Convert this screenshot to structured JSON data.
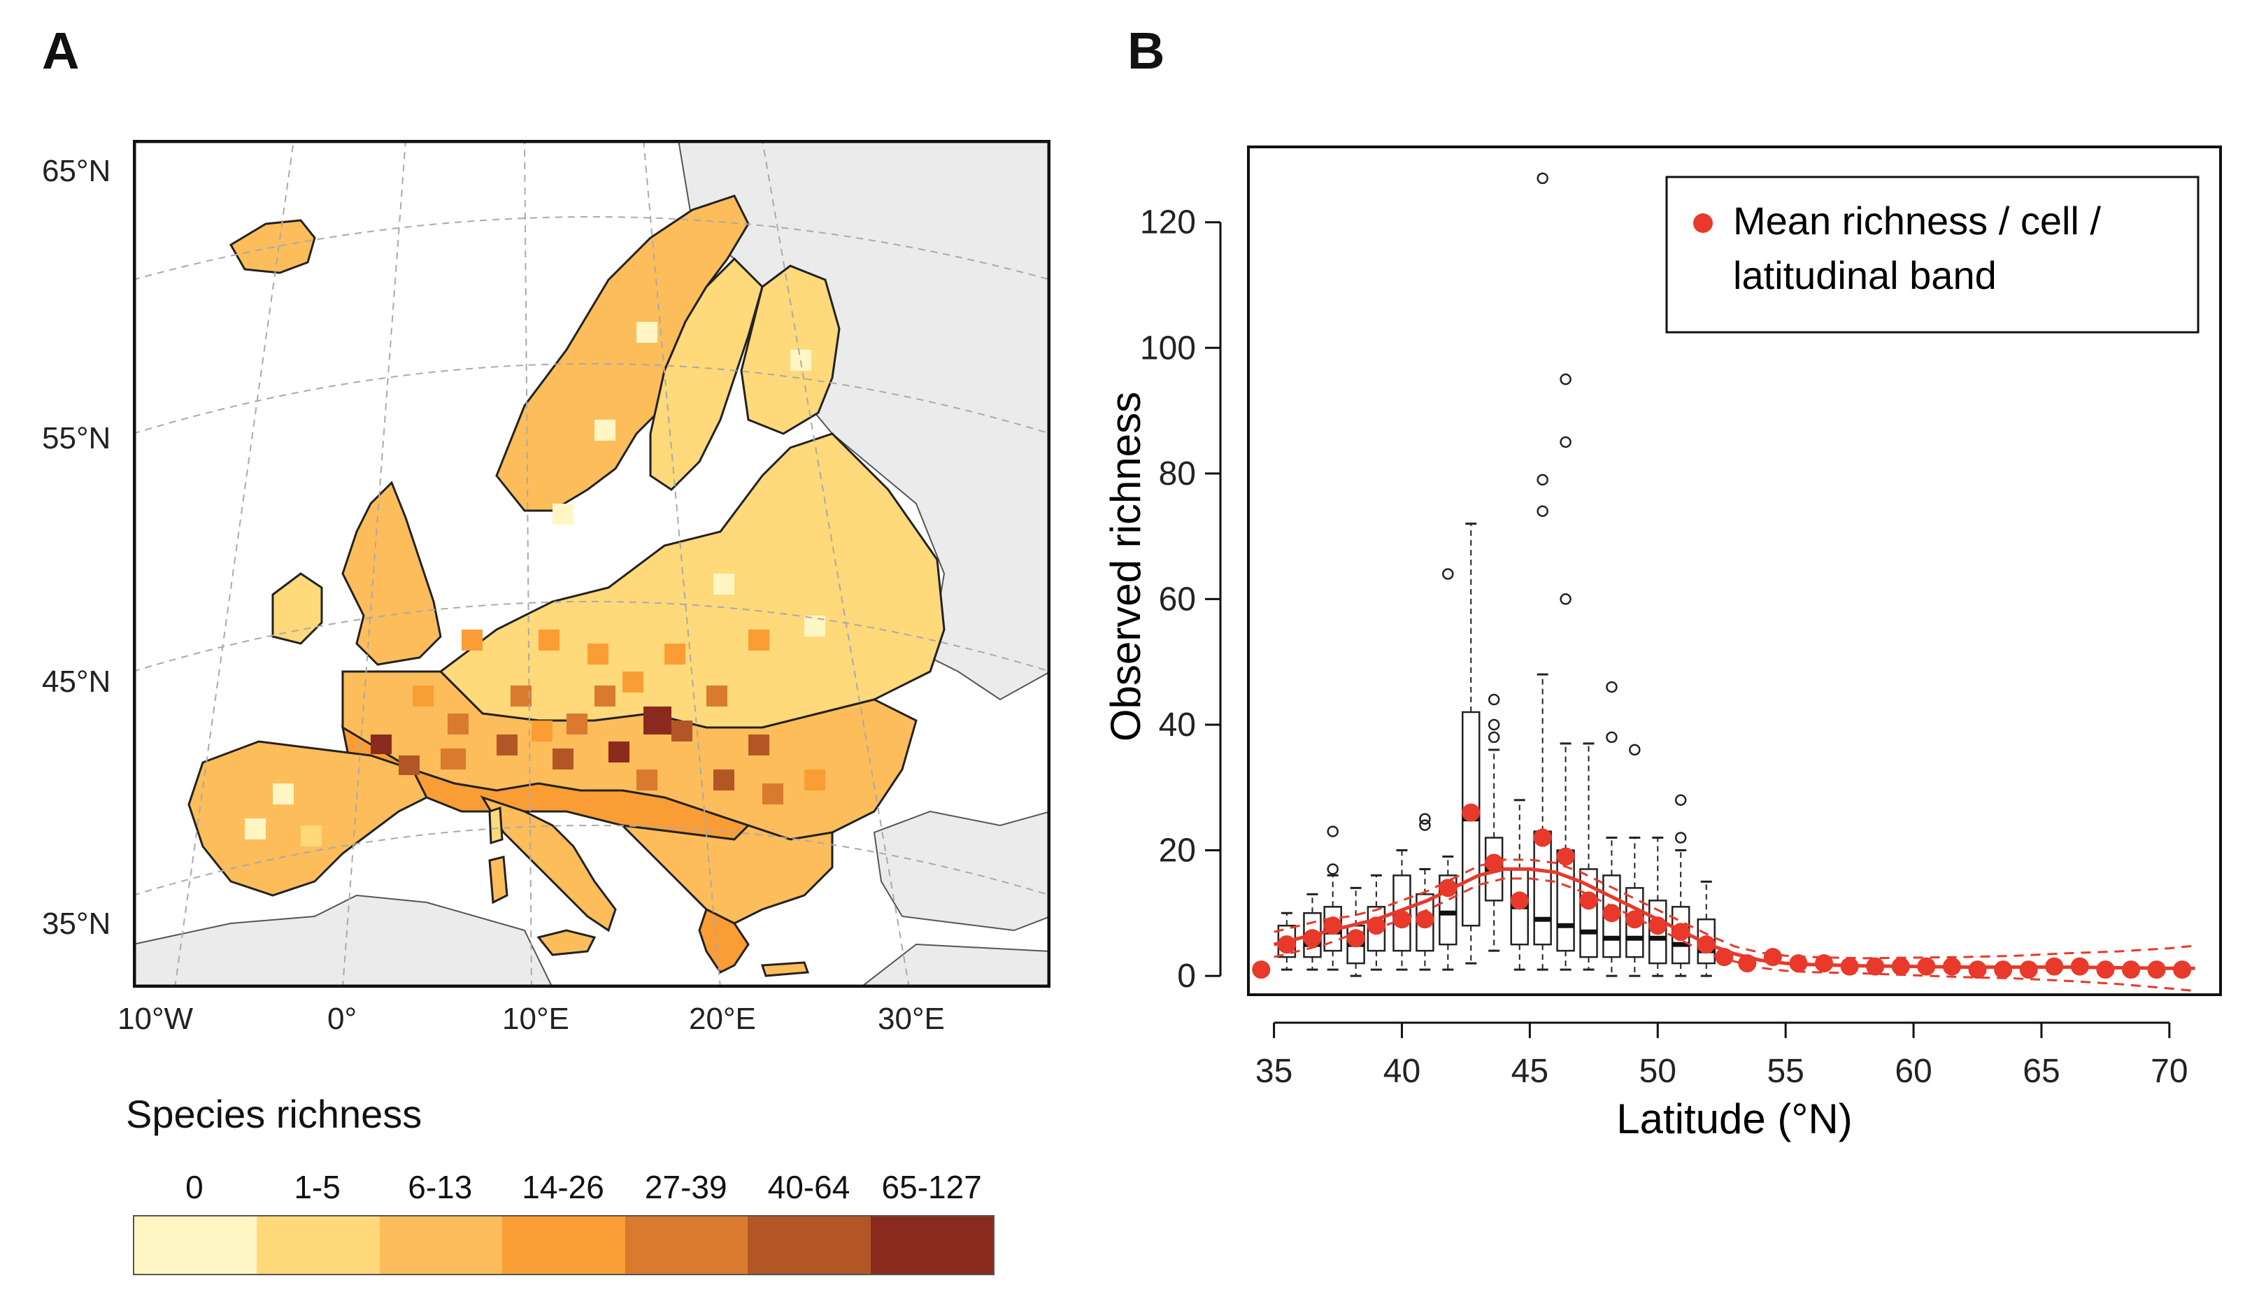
{
  "panels": {
    "a_label": "A",
    "b_label": "B"
  },
  "map": {
    "lat_labels": [
      "65°N",
      "55°N",
      "45°N",
      "35°N"
    ],
    "lon_labels": [
      "10°W",
      "0°",
      "10°E",
      "20°E",
      "30°E"
    ],
    "colors": {
      "sea": "#ffffff",
      "land_outside": "#ebebeb",
      "border": "#111111"
    }
  },
  "legend": {
    "title": "Species richness",
    "categories": [
      "0",
      "1-5",
      "6-13",
      "14-26",
      "27-39",
      "40-64",
      "65-127"
    ],
    "colors": [
      "#fff6c4",
      "#ffd97a",
      "#fdbd5a",
      "#fb9d35",
      "#d97a2e",
      "#b35626",
      "#8a2a1e"
    ]
  },
  "chart_data": {
    "type": "boxplot-with-scatter",
    "xlabel": "Latitude (°N)",
    "ylabel": "Observed richness",
    "xlim": [
      34,
      72
    ],
    "ylim": [
      -3,
      132
    ],
    "xticks": [
      35,
      40,
      45,
      50,
      55,
      60,
      65,
      70
    ],
    "yticks": [
      0,
      20,
      40,
      60,
      80,
      100,
      120
    ],
    "legend": {
      "label_line1": "Mean richness / cell /",
      "label_line2": "latitudinal band",
      "color": "#e8392a"
    },
    "series_color": "#e8392a",
    "boxes": [
      {
        "x": 35.5,
        "q1": 3,
        "median": 5,
        "q3": 8,
        "wlo": 1,
        "whi": 10,
        "outliers": []
      },
      {
        "x": 36.5,
        "q1": 3,
        "median": 5,
        "q3": 10,
        "wlo": 1,
        "whi": 13,
        "outliers": []
      },
      {
        "x": 37.3,
        "q1": 4,
        "median": 7,
        "q3": 11,
        "wlo": 1,
        "whi": 16,
        "outliers": [
          17,
          23
        ]
      },
      {
        "x": 38.2,
        "q1": 2,
        "median": 5,
        "q3": 8,
        "wlo": 0,
        "whi": 14,
        "outliers": []
      },
      {
        "x": 39.0,
        "q1": 4,
        "median": 8,
        "q3": 11,
        "wlo": 1,
        "whi": 16,
        "outliers": []
      },
      {
        "x": 40.0,
        "q1": 4,
        "median": 9,
        "q3": 16,
        "wlo": 1,
        "whi": 20,
        "outliers": []
      },
      {
        "x": 40.9,
        "q1": 4,
        "median": 9,
        "q3": 13,
        "wlo": 1,
        "whi": 17,
        "outliers": [
          24,
          25
        ]
      },
      {
        "x": 41.8,
        "q1": 5,
        "median": 10,
        "q3": 16,
        "wlo": 1,
        "whi": 19,
        "outliers": [
          64
        ]
      },
      {
        "x": 42.7,
        "q1": 8,
        "median": 25,
        "q3": 42,
        "wlo": 2,
        "whi": 72,
        "outliers": []
      },
      {
        "x": 43.6,
        "q1": 12,
        "median": 17,
        "q3": 22,
        "wlo": 4,
        "whi": 36,
        "outliers": [
          38,
          40,
          44
        ]
      },
      {
        "x": 44.6,
        "q1": 5,
        "median": 11,
        "q3": 17,
        "wlo": 1,
        "whi": 28,
        "outliers": []
      },
      {
        "x": 45.5,
        "q1": 5,
        "median": 9,
        "q3": 23,
        "wlo": 1,
        "whi": 48,
        "outliers": [
          74,
          79,
          127
        ]
      },
      {
        "x": 46.4,
        "q1": 4,
        "median": 8,
        "q3": 20,
        "wlo": 1,
        "whi": 37,
        "outliers": [
          60,
          85,
          95
        ]
      },
      {
        "x": 47.3,
        "q1": 3,
        "median": 7,
        "q3": 17,
        "wlo": 1,
        "whi": 37,
        "outliers": []
      },
      {
        "x": 48.2,
        "q1": 3,
        "median": 6,
        "q3": 16,
        "wlo": 0,
        "whi": 22,
        "outliers": [
          38,
          46
        ]
      },
      {
        "x": 49.1,
        "q1": 3,
        "median": 6,
        "q3": 14,
        "wlo": 0,
        "whi": 22,
        "outliers": [
          36
        ]
      },
      {
        "x": 50.0,
        "q1": 2,
        "median": 6,
        "q3": 12,
        "wlo": 0,
        "whi": 22,
        "outliers": []
      },
      {
        "x": 50.9,
        "q1": 2,
        "median": 5,
        "q3": 11,
        "wlo": 0,
        "whi": 20,
        "outliers": [
          22,
          28
        ]
      },
      {
        "x": 51.9,
        "q1": 2,
        "median": 4,
        "q3": 9,
        "wlo": 0,
        "whi": 15,
        "outliers": []
      }
    ],
    "x": [
      34.5,
      35.5,
      36.5,
      37.3,
      38.2,
      39.0,
      40.0,
      40.9,
      41.8,
      42.7,
      43.6,
      44.6,
      45.5,
      46.4,
      47.3,
      48.2,
      49.1,
      50.0,
      50.9,
      51.9,
      52.6,
      53.5,
      54.5,
      55.5,
      56.5,
      57.5,
      58.5,
      59.5,
      60.5,
      61.5,
      62.5,
      63.5,
      64.5,
      65.5,
      66.5,
      67.5,
      68.5,
      69.5,
      70.5
    ],
    "mean": [
      1,
      5,
      6,
      8,
      6,
      8,
      9,
      9,
      14,
      26,
      18,
      12,
      22,
      19,
      12,
      10,
      9,
      8,
      7,
      5,
      3,
      2,
      3,
      2,
      2,
      1.5,
      1.5,
      1.5,
      1.5,
      1.5,
      1,
      1,
      1,
      1.5,
      1.5,
      1,
      1,
      1,
      1
    ],
    "fit": {
      "x": [
        35,
        36,
        37,
        38,
        39,
        40,
        41,
        42,
        43,
        44,
        45,
        46,
        47,
        48,
        49,
        50,
        51,
        52,
        53,
        54,
        55,
        56,
        58,
        60,
        62,
        64,
        66,
        68,
        70,
        71
      ],
      "y": [
        5,
        6,
        7,
        8,
        9,
        10.5,
        12,
        14,
        16,
        17,
        17,
        16.5,
        15,
        13,
        11,
        9,
        7,
        5,
        3.5,
        2.5,
        2,
        1.8,
        1.6,
        1.5,
        1.4,
        1.4,
        1.4,
        1.3,
        1.2,
        1.2
      ],
      "ci": [
        2,
        2,
        2,
        1.5,
        1.5,
        1.5,
        1.5,
        1.5,
        1.5,
        1.5,
        1.5,
        1.5,
        1.5,
        1.5,
        1.5,
        1.5,
        1.5,
        1.5,
        1.2,
        1.2,
        1.2,
        1.2,
        1.2,
        1.4,
        1.6,
        1.8,
        2.2,
        2.6,
        3.2,
        3.6
      ]
    }
  }
}
